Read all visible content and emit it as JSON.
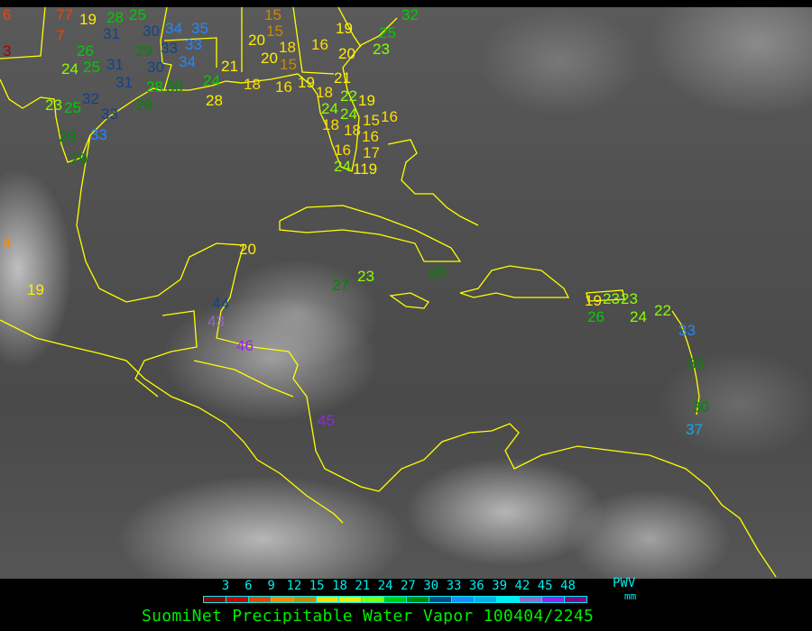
{
  "map": {
    "coastline_color": "#ffff00",
    "stations": [
      {
        "value": "6",
        "color": "#ee4400"
      },
      {
        "value": "77",
        "color": "#ee4400"
      },
      {
        "value": "7",
        "color": "#ee4400"
      },
      {
        "value": "3",
        "color": "#aa0000"
      },
      {
        "value": "19",
        "color": "#ffee00"
      },
      {
        "value": "28",
        "color": "#00cc00"
      },
      {
        "value": "25",
        "color": "#00cc00"
      },
      {
        "value": "31",
        "color": "#114488"
      },
      {
        "value": "30",
        "color": "#114488"
      },
      {
        "value": "34",
        "color": "#2288ff"
      },
      {
        "value": "35",
        "color": "#2288ff"
      },
      {
        "value": "26",
        "color": "#00cc00"
      },
      {
        "value": "25",
        "color": "#00cc00"
      },
      {
        "value": "24",
        "color": "#88ff00"
      },
      {
        "value": "31",
        "color": "#114488"
      },
      {
        "value": "29",
        "color": "#008800"
      },
      {
        "value": "30",
        "color": "#114488"
      },
      {
        "value": "33",
        "color": "#114488"
      },
      {
        "value": "33",
        "color": "#2288ff"
      },
      {
        "value": "34",
        "color": "#2288ff"
      },
      {
        "value": "31",
        "color": "#114488"
      },
      {
        "value": "28",
        "color": "#00cc00"
      },
      {
        "value": "30",
        "color": "#008800"
      },
      {
        "value": "29",
        "color": "#008800"
      },
      {
        "value": "23",
        "color": "#88ff00"
      },
      {
        "value": "25",
        "color": "#00cc00"
      },
      {
        "value": "32",
        "color": "#114488"
      },
      {
        "value": "33",
        "color": "#114488"
      },
      {
        "value": "33",
        "color": "#2288ff"
      },
      {
        "value": "29",
        "color": "#008800"
      },
      {
        "value": "29",
        "color": "#008800"
      },
      {
        "value": "21",
        "color": "#ffee00"
      },
      {
        "value": "24",
        "color": "#00cc00"
      },
      {
        "value": "28",
        "color": "#ffee00"
      },
      {
        "value": "15",
        "color": "#cc8800"
      },
      {
        "value": "15",
        "color": "#cc8800"
      },
      {
        "value": "20",
        "color": "#ffee00"
      },
      {
        "value": "18",
        "color": "#ffdd00"
      },
      {
        "value": "20",
        "color": "#ffee00"
      },
      {
        "value": "15",
        "color": "#cc8800"
      },
      {
        "value": "16",
        "color": "#ffdd00"
      },
      {
        "value": "19",
        "color": "#ffee00"
      },
      {
        "value": "20",
        "color": "#ffee00"
      },
      {
        "value": "25",
        "color": "#00cc00"
      },
      {
        "value": "23",
        "color": "#88ff00"
      },
      {
        "value": "32",
        "color": "#00cc00"
      },
      {
        "value": "21",
        "color": "#ffee00"
      },
      {
        "value": "18",
        "color": "#ffdd00"
      },
      {
        "value": "16",
        "color": "#ffdd00"
      },
      {
        "value": "19",
        "color": "#ffee00"
      },
      {
        "value": "18",
        "color": "#ffdd00"
      },
      {
        "value": "24",
        "color": "#88ff00"
      },
      {
        "value": "22",
        "color": "#88ff00"
      },
      {
        "value": "19",
        "color": "#ffee00"
      },
      {
        "value": "24",
        "color": "#88ff00"
      },
      {
        "value": "18",
        "color": "#ffdd00"
      },
      {
        "value": "18",
        "color": "#ffdd00"
      },
      {
        "value": "15",
        "color": "#ffdd00"
      },
      {
        "value": "16",
        "color": "#ffdd00"
      },
      {
        "value": "16",
        "color": "#ffdd00"
      },
      {
        "value": "17",
        "color": "#ffdd00"
      },
      {
        "value": "16",
        "color": "#ffdd00"
      },
      {
        "value": "24",
        "color": "#88ff00"
      },
      {
        "value": "119",
        "color": "#ffee00"
      },
      {
        "value": "4",
        "color": "#ff8800"
      },
      {
        "value": "19",
        "color": "#ffee00"
      },
      {
        "value": "20",
        "color": "#ffee00"
      },
      {
        "value": "44",
        "color": "#114488"
      },
      {
        "value": "43",
        "color": "#9966cc"
      },
      {
        "value": "46",
        "color": "#9922ee"
      },
      {
        "value": "27",
        "color": "#008800"
      },
      {
        "value": "23",
        "color": "#88ff00"
      },
      {
        "value": "28",
        "color": "#008800"
      },
      {
        "value": "45",
        "color": "#9922ee"
      },
      {
        "value": "19",
        "color": "#ffee00"
      },
      {
        "value": "23",
        "color": "#88ff00"
      },
      {
        "value": "23",
        "color": "#88ff00"
      },
      {
        "value": "26",
        "color": "#00cc00"
      },
      {
        "value": "24",
        "color": "#88ff00"
      },
      {
        "value": "22",
        "color": "#88ff00"
      },
      {
        "value": "33",
        "color": "#2288ff"
      },
      {
        "value": "30",
        "color": "#008800"
      },
      {
        "value": "30",
        "color": "#008800"
      },
      {
        "value": "37",
        "color": "#11aaee"
      }
    ]
  },
  "legend": {
    "ticks": [
      "3",
      "6",
      "9",
      "12",
      "15",
      "18",
      "21",
      "24",
      "27",
      "30",
      "33",
      "36",
      "39",
      "42",
      "45",
      "48"
    ],
    "colors": [
      "#8b0000",
      "#cc0000",
      "#ee4400",
      "#ff8800",
      "#cc8800",
      "#ffdd00",
      "#eeee00",
      "#88ff00",
      "#00cc00",
      "#008800",
      "#114488",
      "#2288ff",
      "#11aaee",
      "#00eeee",
      "#9966cc",
      "#9922ee",
      "#880088"
    ],
    "unit_label": "PWV",
    "unit": "mm",
    "title": "SuomiNet Precipitable Water Vapor 100404/2245"
  }
}
